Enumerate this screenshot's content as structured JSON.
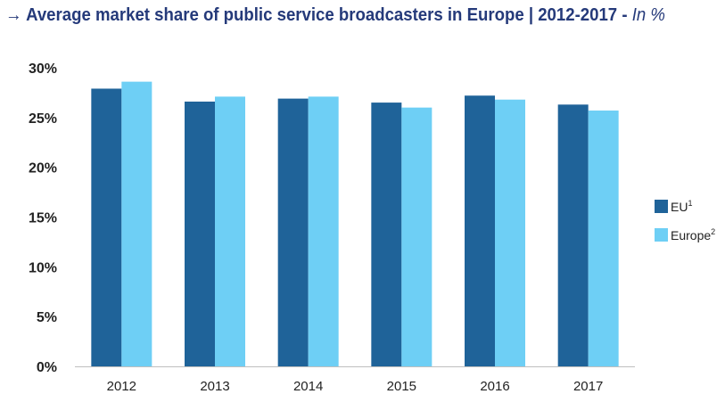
{
  "title": {
    "arrow": "→",
    "main": "Average market share of public service broadcasters in Europe | 2012-2017",
    "separator": " - ",
    "unit": "In %"
  },
  "chart_data": {
    "type": "bar",
    "categories": [
      "2012",
      "2013",
      "2014",
      "2015",
      "2016",
      "2017"
    ],
    "series": [
      {
        "name": "EU",
        "superscript": "1",
        "color": "#1f6399",
        "values": [
          27.9,
          26.6,
          26.9,
          26.5,
          27.2,
          26.3
        ]
      },
      {
        "name": "Europe",
        "superscript": "2",
        "color": "#6ecff5",
        "values": [
          28.6,
          27.1,
          27.1,
          26.0,
          26.8,
          25.7
        ]
      }
    ],
    "ylim": [
      0,
      30
    ],
    "yticks": [
      0,
      5,
      10,
      15,
      20,
      25,
      30
    ],
    "ytick_labels": [
      "0%",
      "5%",
      "10%",
      "15%",
      "20%",
      "25%",
      "30%"
    ],
    "grid": false,
    "legend_position": "right"
  }
}
